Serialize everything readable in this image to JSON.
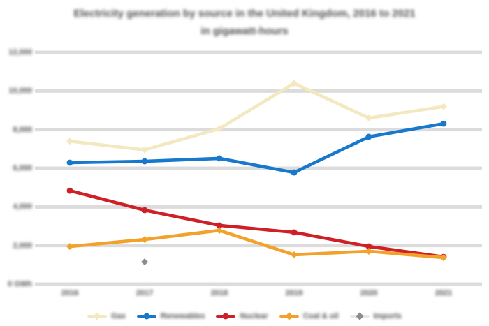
{
  "header": {
    "title_line1": "Electricity generation by source in the United Kingdom, 2016 to 2021",
    "title_line2": "in gigawatt-hours"
  },
  "chart_data": {
    "type": "line",
    "title": "Electricity generation by source in the United Kingdom, 2016 to 2021",
    "subtitle": "in gigawatt-hours",
    "categories": [
      "2016",
      "2017",
      "2018",
      "2019",
      "2020",
      "2021"
    ],
    "series": [
      {
        "name": "Gas",
        "color": "#f3e8c0",
        "marker": "diamond",
        "values": [
          7400,
          6950,
          8050,
          10400,
          8600,
          9200
        ]
      },
      {
        "name": "Renewables",
        "color": "#1878cc",
        "marker": "circle",
        "values": [
          6290,
          6360,
          6510,
          5780,
          7630,
          8310
        ]
      },
      {
        "name": "Nuclear",
        "color": "#cf2027",
        "marker": "circle",
        "values": [
          4840,
          3830,
          3040,
          2680,
          1950,
          1410
        ]
      },
      {
        "name": "Coal & oil",
        "color": "#f2a12b",
        "marker": "diamond",
        "values": [
          1950,
          2310,
          2780,
          1520,
          1700,
          1370
        ]
      },
      {
        "name": "Imports",
        "color": "#e8e8e8",
        "marker": "diamond",
        "marker_color": "#8c8c8c",
        "values": [
          null,
          1150,
          null,
          null,
          null,
          null
        ]
      }
    ],
    "xlabel": "",
    "ylabel": "GWh",
    "ylim": [
      0,
      12000
    ],
    "yticks": {
      "values": [
        12000,
        10000,
        8000,
        6000,
        4000,
        2000,
        0
      ],
      "labels": [
        "12,000",
        "10,000",
        "8,000",
        "6,000",
        "4,000",
        "2,000",
        "0 GWh"
      ]
    },
    "grid": true,
    "legend_position": "bottom"
  },
  "colors": {
    "background": "#ffffff",
    "gridline": "#dcdcdc",
    "text": "#4f4f4f"
  }
}
